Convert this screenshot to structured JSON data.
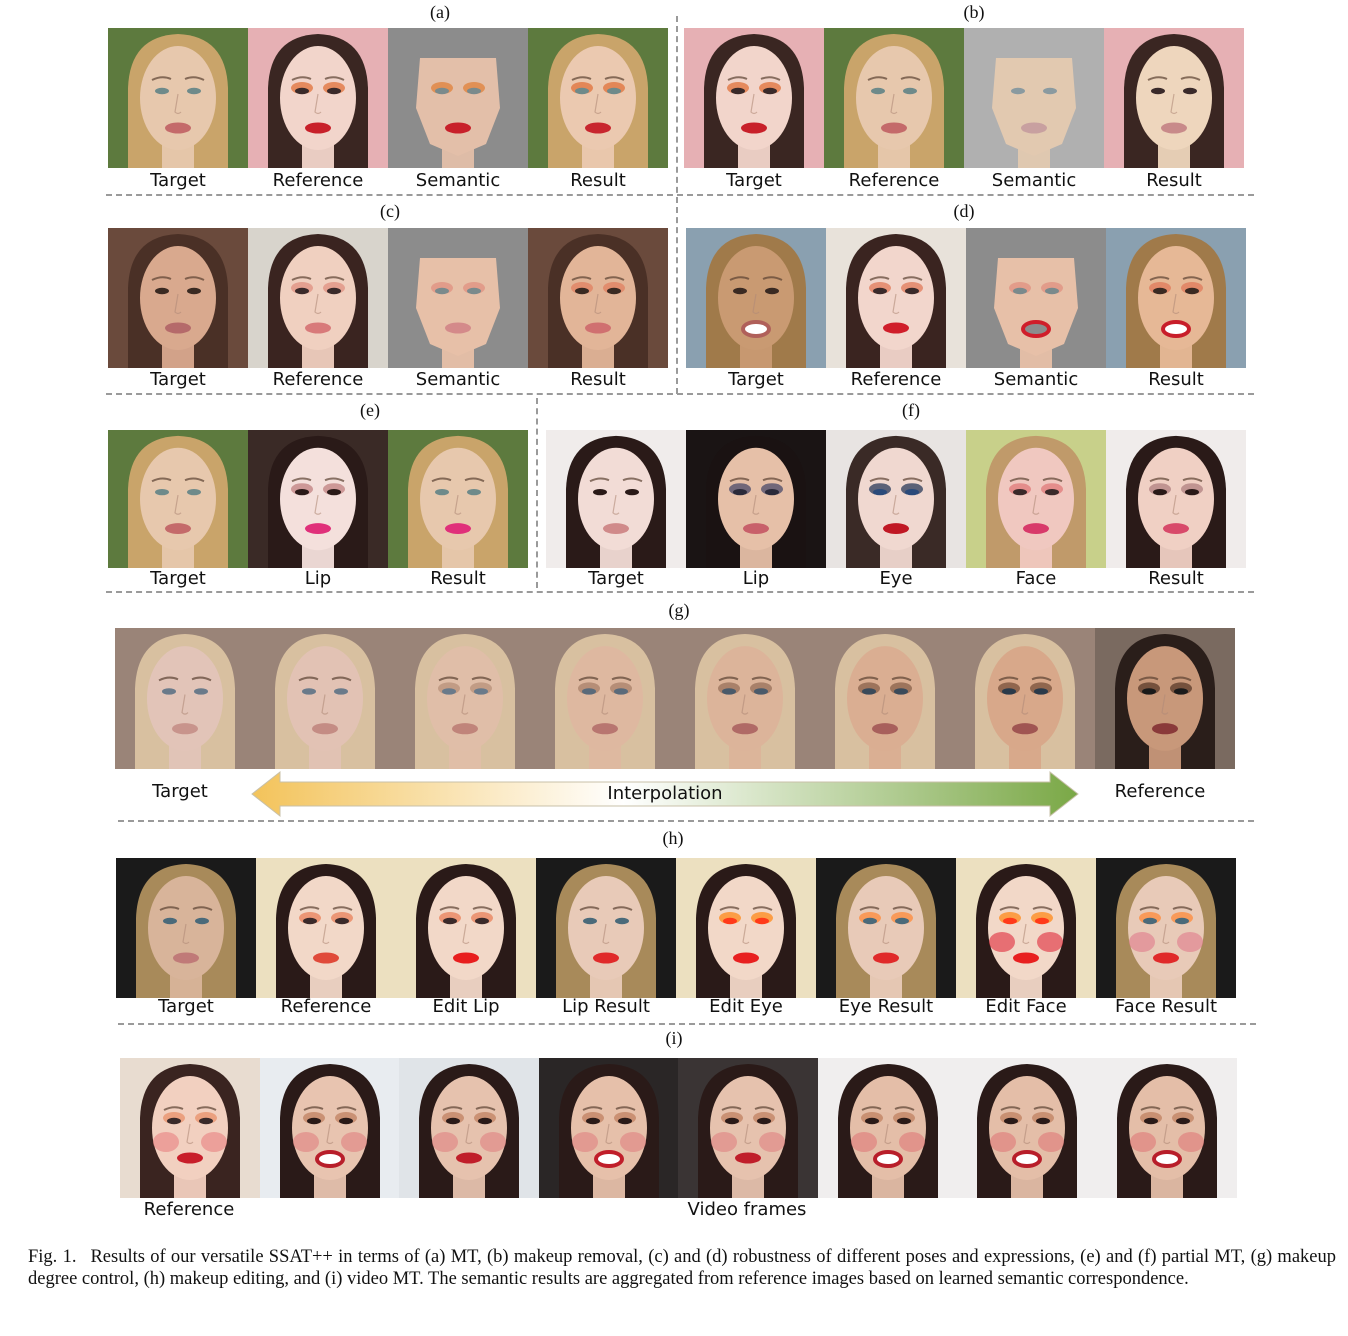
{
  "panels": {
    "a": {
      "letter": "(a)",
      "captions": [
        "Target",
        "Reference",
        "Semantic",
        "Result"
      ],
      "images": [
        {
          "skin": "#e7c8ad",
          "hair": "#c9a46a",
          "bg": "#5d7a3e",
          "lip": "#c46a6a",
          "eye": "#6e8a8a",
          "shadow": "none"
        },
        {
          "skin": "#f2d5cb",
          "hair": "#3a2622",
          "bg": "#e6b0b4",
          "lip": "#c8202a",
          "eye": "#3a2a2a",
          "shadow": "#e0703a"
        },
        {
          "skin": "#e3bfa9",
          "hair": "#8c8c8c",
          "bg": "#8c8c8c",
          "lip": "#c8202a",
          "eye": "#7a8a8c",
          "shadow": "#e0803a"
        },
        {
          "skin": "#ebc9b0",
          "hair": "#c9a46a",
          "bg": "#5d7a3e",
          "lip": "#c8262e",
          "eye": "#6e8a8a",
          "shadow": "#e0703a"
        }
      ]
    },
    "b": {
      "letter": "(b)",
      "captions": [
        "Target",
        "Reference",
        "Semantic",
        "Result"
      ],
      "images": [
        {
          "skin": "#f2d5cb",
          "hair": "#3a2622",
          "bg": "#e6b0b4",
          "lip": "#c8202a",
          "eye": "#3a2a2a",
          "shadow": "#e0703a"
        },
        {
          "skin": "#e7c8ad",
          "hair": "#c9a46a",
          "bg": "#5d7a3e",
          "lip": "#c46a6a",
          "eye": "#6e8a8a",
          "shadow": "none"
        },
        {
          "skin": "#e2c9b0",
          "hair": "#a9a9a9",
          "bg": "#b0b0b0",
          "lip": "#c8a0a0",
          "eye": "#8a9aa0",
          "shadow": "none"
        },
        {
          "skin": "#eed6bd",
          "hair": "#3a2622",
          "bg": "#e6b0b4",
          "lip": "#c88a8a",
          "eye": "#3a2a2a",
          "shadow": "none"
        }
      ]
    },
    "c": {
      "letter": "(c)",
      "captions": [
        "Target",
        "Reference",
        "Semantic",
        "Result"
      ],
      "images": [
        {
          "skin": "#d9a98e",
          "hair": "#4a3026",
          "bg": "#6a4a3c",
          "lip": "#b56a6a",
          "eye": "#3a2a22",
          "shadow": "none"
        },
        {
          "skin": "#f0d0c0",
          "hair": "#3a2420",
          "bg": "#d8d4cc",
          "lip": "#d87a7a",
          "eye": "#3a2a2a",
          "shadow": "#e09080"
        },
        {
          "skin": "#e7c0a8",
          "hair": "#8c8c8c",
          "bg": "#8c8c8c",
          "lip": "#d48a8a",
          "eye": "#7a8a8c",
          "shadow": "#e09080"
        },
        {
          "skin": "#e2b598",
          "hair": "#4a3026",
          "bg": "#6a4a3c",
          "lip": "#d07070",
          "eye": "#3a2a22",
          "shadow": "#e08060"
        }
      ]
    },
    "d": {
      "letter": "(d)",
      "captions": [
        "Target",
        "Reference",
        "Semantic",
        "Result"
      ],
      "images": [
        {
          "skin": "#c99a72",
          "hair": "#a07a4a",
          "bg": "#8aa0b0",
          "lip": "#b0605a",
          "eye": "#3a2a22",
          "shadow": "none",
          "mouth": "open"
        },
        {
          "skin": "#f2d6cc",
          "hair": "#3a2420",
          "bg": "#e8e2da",
          "lip": "#d01e2a",
          "eye": "#3a2a2a",
          "shadow": "#e07a5a"
        },
        {
          "skin": "#e7c0a8",
          "hair": "#8c8c8c",
          "bg": "#8c8c8c",
          "lip": "#d01e2a",
          "eye": "#7a8a8c",
          "shadow": "#e09080",
          "mouth": "open"
        },
        {
          "skin": "#e6b896",
          "hair": "#a07a4a",
          "bg": "#8aa0b0",
          "lip": "#c81e2a",
          "eye": "#3a2a22",
          "shadow": "#e07a5a",
          "mouth": "open"
        }
      ]
    },
    "e": {
      "letter": "(e)",
      "captions": [
        "Target",
        "Lip",
        "Result"
      ],
      "images": [
        {
          "skin": "#e7c8ad",
          "hair": "#c9a46a",
          "bg": "#5d7a3e",
          "lip": "#c46a6a",
          "eye": "#6e8a8a",
          "shadow": "none"
        },
        {
          "skin": "#f4e0dc",
          "hair": "#2a1a18",
          "bg": "#3a2a26",
          "lip": "#e0307a",
          "eye": "#2a1a18",
          "shadow": "#c08080"
        },
        {
          "skin": "#e7c8ad",
          "hair": "#c9a46a",
          "bg": "#5d7a3e",
          "lip": "#e0307a",
          "eye": "#6e8a8a",
          "shadow": "none"
        }
      ]
    },
    "f": {
      "letter": "(f)",
      "captions": [
        "Target",
        "Lip",
        "Eye",
        "Face",
        "Result"
      ],
      "images": [
        {
          "skin": "#f2dcd6",
          "hair": "#2a1a18",
          "bg": "#f0eceb",
          "lip": "#d08a8a",
          "eye": "#2a1a18",
          "shadow": "none"
        },
        {
          "skin": "#e6c0a8",
          "hair": "#1a1212",
          "bg": "#1a1414",
          "lip": "#c8606a",
          "eye": "#2a2a3a",
          "shadow": "#4a4a6a"
        },
        {
          "skin": "#f0d8d0",
          "hair": "#3a2a26",
          "bg": "#e8e4e2",
          "lip": "#c01824",
          "eye": "#2a4a7a",
          "shadow": "#2a3a5a"
        },
        {
          "skin": "#f0c8c0",
          "hair": "#c09a6a",
          "bg": "#c8d08a",
          "lip": "#d83a6a",
          "eye": "#3a2a2a",
          "shadow": "#e07a7a"
        },
        {
          "skin": "#f0d0c4",
          "hair": "#2a1a18",
          "bg": "#f0eceb",
          "lip": "#d84a6a",
          "eye": "#2a1a18",
          "shadow": "#b08080"
        }
      ]
    },
    "g": {
      "letter": "(g)",
      "target_label": "Target",
      "reference_label": "Reference",
      "arrow_label": "Interpolation",
      "images": [
        {
          "skin": "#e2c4b8",
          "hair": "#d8c0a0",
          "bg": "#9a8478",
          "lip": "#c8948c",
          "eye": "#6a7a8a",
          "shadow": "none"
        },
        {
          "skin": "#e2c2b4",
          "hair": "#d8c0a0",
          "bg": "#9a8478",
          "lip": "#c48c84",
          "eye": "#6a7a8a",
          "shadow": "none"
        },
        {
          "skin": "#e0bea8",
          "hair": "#d8c0a0",
          "bg": "#9a8478",
          "lip": "#c0847a",
          "eye": "#6a7a8a",
          "shadow": "#b8907a"
        },
        {
          "skin": "#deb8a0",
          "hair": "#d8c0a0",
          "bg": "#9a8478",
          "lip": "#b87670",
          "eye": "#5a6a7a",
          "shadow": "#a8806a"
        },
        {
          "skin": "#dcb49a",
          "hair": "#d8c0a0",
          "bg": "#9a8478",
          "lip": "#b06a66",
          "eye": "#4a5a6a",
          "shadow": "#98705a"
        },
        {
          "skin": "#daae92",
          "hair": "#d8c0a0",
          "bg": "#9a8478",
          "lip": "#a8605c",
          "eye": "#3a4a5a",
          "shadow": "#88604a"
        },
        {
          "skin": "#d8a88a",
          "hair": "#d8c0a0",
          "bg": "#9a8478",
          "lip": "#a05552",
          "eye": "#2a3a4a",
          "shadow": "#78503a"
        },
        {
          "skin": "#c8987a",
          "hair": "#2a1e1a",
          "bg": "#7a6a60",
          "lip": "#8a3a3a",
          "eye": "#1a1a1a",
          "shadow": "#5a3a2a"
        }
      ]
    },
    "h": {
      "letter": "(h)",
      "captions": [
        "Target",
        "Reference",
        "Edit Lip",
        "Lip Result",
        "Edit Eye",
        "Eye Result",
        "Edit Face",
        "Face Result"
      ],
      "images": [
        {
          "skin": "#d8b49a",
          "hair": "#a88a5a",
          "bg": "#1a1a1a",
          "lip": "#c07a78",
          "eye": "#4a6a7a",
          "shadow": "none"
        },
        {
          "skin": "#f2d8c8",
          "hair": "#2a1a18",
          "bg": "#ece0c0",
          "lip": "#e04a3a",
          "eye": "#3a2a2a",
          "shadow": "#e8805a"
        },
        {
          "skin": "#f2d8c8",
          "hair": "#2a1a18",
          "bg": "#ece0c0",
          "lip": "#e81e1e",
          "eye": "#3a2a2a",
          "shadow": "#e8805a"
        },
        {
          "skin": "#e8cab8",
          "hair": "#a88a5a",
          "bg": "#1a1a1a",
          "lip": "#e02a2a",
          "eye": "#4a6a7a",
          "shadow": "none"
        },
        {
          "skin": "#f2d8c8",
          "hair": "#2a1a18",
          "bg": "#ece0c0",
          "lip": "#e82020",
          "eye": "#ff3a1a",
          "shadow": "#ff8a1a"
        },
        {
          "skin": "#e8cab8",
          "hair": "#a88a5a",
          "bg": "#1a1a1a",
          "lip": "#e02a2a",
          "eye": "#4a6a7a",
          "shadow": "#ff8a3a"
        },
        {
          "skin": "#f2d8c8",
          "hair": "#2a1a18",
          "bg": "#ece0c0",
          "lip": "#e82020",
          "eye": "#ff3a1a",
          "shadow": "#ff8a1a",
          "blush": "#e02a3a"
        },
        {
          "skin": "#e8cab8",
          "hair": "#a88a5a",
          "bg": "#1a1a1a",
          "lip": "#e02a2a",
          "eye": "#4a6a7a",
          "shadow": "#ff8a3a",
          "blush": "#e07a8a"
        }
      ]
    },
    "i": {
      "letter": "(i)",
      "reference_label": "Reference",
      "video_label": "Video frames",
      "images": [
        {
          "skin": "#f2d0c0",
          "hair": "#3a2420",
          "bg": "#e8dcd0",
          "lip": "#c81e2a",
          "eye": "#3a2a2a",
          "shadow": "#e8906a",
          "blush": "#e88080"
        },
        {
          "skin": "#e8c4b0",
          "hair": "#2a1a18",
          "bg": "#e8ecf0",
          "lip": "#b81e2a",
          "eye": "#2a1a18",
          "shadow": "#c08060",
          "blush": "#e08080",
          "mouth": "open"
        },
        {
          "skin": "#e6c2ae",
          "hair": "#2a1a18",
          "bg": "#e0e4e8",
          "lip": "#c01e2a",
          "eye": "#2a1a18",
          "shadow": "#c08060",
          "blush": "#e08080"
        },
        {
          "skin": "#e6c0aa",
          "hair": "#2a1a18",
          "bg": "#2a2626",
          "lip": "#c01e2a",
          "eye": "#2a1a18",
          "shadow": "#c08060",
          "blush": "#e08080",
          "mouth": "open"
        },
        {
          "skin": "#e6c2ae",
          "hair": "#2a1a18",
          "bg": "#3a3434",
          "lip": "#c01e2a",
          "eye": "#2a1a18",
          "shadow": "#c08060",
          "blush": "#e08080"
        },
        {
          "skin": "#e4bea8",
          "hair": "#2a1a18",
          "bg": "#f0eeee",
          "lip": "#b81e2a",
          "eye": "#2a1a18",
          "shadow": "#c08060",
          "blush": "#e07878",
          "mouth": "open"
        },
        {
          "skin": "#e4bea8",
          "hair": "#2a1a18",
          "bg": "#f0eeee",
          "lip": "#b81e2a",
          "eye": "#2a1a18",
          "shadow": "#c08060",
          "blush": "#e07878",
          "mouth": "open"
        },
        {
          "skin": "#e4bea8",
          "hair": "#2a1a18",
          "bg": "#f0eeee",
          "lip": "#b81e2a",
          "eye": "#2a1a18",
          "shadow": "#c08060",
          "blush": "#e07878",
          "mouth": "open"
        }
      ]
    }
  },
  "figure_caption": {
    "label": "Fig. 1.",
    "text": "Results of our versatile SSAT++ in terms of (a) MT, (b) makeup removal, (c) and (d) robustness of different poses and expressions, (e) and (f) partial MT, (g) makeup degree control, (h) makeup editing, and (i) video MT. The semantic results are aggregated from reference images based on learned semantic correspondence."
  }
}
